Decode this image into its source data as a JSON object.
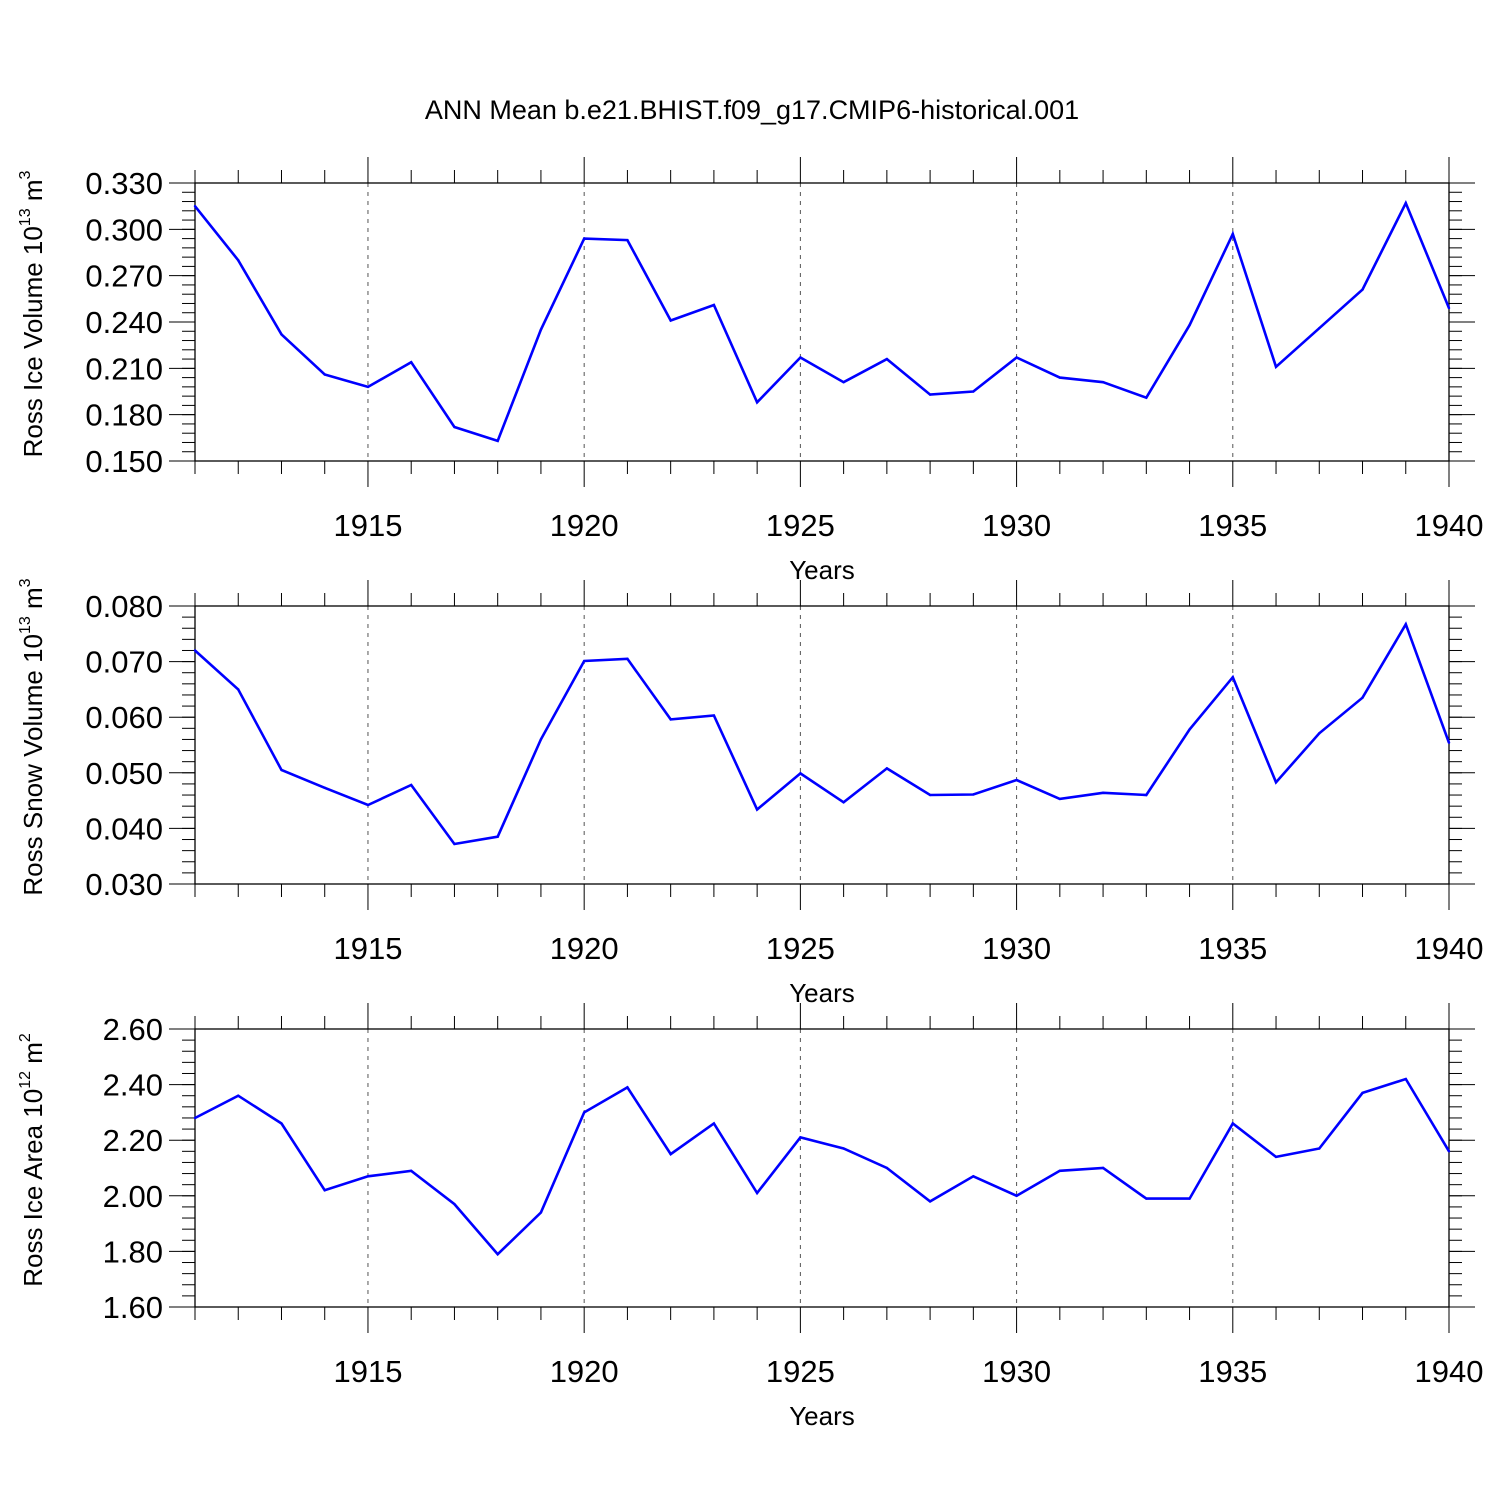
{
  "title": "ANN Mean b.e21.BHIST.f09_g17.CMIP6-historical.001",
  "colors": {
    "line": "#0000ff",
    "axis": "#000000",
    "grid": "#555555"
  },
  "chart_data": [
    {
      "type": "line",
      "ylabel_main": "Ross Ice Volume 10",
      "ylabel_exp": "13",
      "ylabel_unit": " m",
      "ylabel_unit_exp": "3",
      "xlabel": "Years",
      "xlim": [
        1911,
        1940
      ],
      "ylim": [
        0.15,
        0.33
      ],
      "ymajor": [
        0.15,
        0.18,
        0.21,
        0.24,
        0.27,
        0.3,
        0.33
      ],
      "ytick_labels": [
        "0.150",
        "0.180",
        "0.210",
        "0.240",
        "0.270",
        "0.300",
        "0.330"
      ],
      "yminor_step": 0.006,
      "xmajor": [
        1915,
        1920,
        1925,
        1930,
        1935,
        1940
      ],
      "xtick_labels": [
        "1915",
        "1920",
        "1925",
        "1930",
        "1935",
        "1940"
      ],
      "grid": "vertical dashed at major x ticks",
      "x": [
        1911,
        1912,
        1913,
        1914,
        1915,
        1916,
        1917,
        1918,
        1919,
        1920,
        1921,
        1922,
        1923,
        1924,
        1925,
        1926,
        1927,
        1928,
        1929,
        1930,
        1931,
        1932,
        1933,
        1934,
        1935,
        1936,
        1937,
        1938,
        1939,
        1940
      ],
      "values": [
        0.315,
        0.28,
        0.232,
        0.206,
        0.198,
        0.214,
        0.172,
        0.163,
        0.235,
        0.294,
        0.293,
        0.241,
        0.251,
        0.188,
        0.217,
        0.201,
        0.216,
        0.193,
        0.195,
        0.217,
        0.204,
        0.201,
        0.191,
        0.238,
        0.297,
        0.211,
        0.236,
        0.261,
        0.317,
        0.249
      ]
    },
    {
      "type": "line",
      "ylabel_main": "Ross Snow Volume 10",
      "ylabel_exp": "13",
      "ylabel_unit": " m",
      "ylabel_unit_exp": "3",
      "xlabel": "Years",
      "xlim": [
        1911,
        1940
      ],
      "ylim": [
        0.03,
        0.08
      ],
      "ymajor": [
        0.03,
        0.04,
        0.05,
        0.06,
        0.07,
        0.08
      ],
      "ytick_labels": [
        "0.030",
        "0.040",
        "0.050",
        "0.060",
        "0.070",
        "0.080"
      ],
      "yminor_step": 0.002,
      "xmajor": [
        1915,
        1920,
        1925,
        1930,
        1935,
        1940
      ],
      "xtick_labels": [
        "1915",
        "1920",
        "1925",
        "1930",
        "1935",
        "1940"
      ],
      "grid": "vertical dashed at major x ticks",
      "x": [
        1911,
        1912,
        1913,
        1914,
        1915,
        1916,
        1917,
        1918,
        1919,
        1920,
        1921,
        1922,
        1923,
        1924,
        1925,
        1926,
        1927,
        1928,
        1929,
        1930,
        1931,
        1932,
        1933,
        1934,
        1935,
        1936,
        1937,
        1938,
        1939,
        1940
      ],
      "values": [
        0.072,
        0.065,
        0.0505,
        0.0473,
        0.0442,
        0.0478,
        0.0372,
        0.0385,
        0.056,
        0.0701,
        0.0705,
        0.0596,
        0.0603,
        0.0434,
        0.0499,
        0.0447,
        0.0508,
        0.046,
        0.0461,
        0.0487,
        0.0453,
        0.0464,
        0.046,
        0.0578,
        0.0672,
        0.0483,
        0.0571,
        0.0635,
        0.0767,
        0.0554
      ]
    },
    {
      "type": "line",
      "ylabel_main": "Ross Ice Area 10",
      "ylabel_exp": "12",
      "ylabel_unit": " m",
      "ylabel_unit_exp": "2",
      "xlabel": "Years",
      "xlim": [
        1911,
        1940
      ],
      "ylim": [
        1.6,
        2.6
      ],
      "ymajor": [
        1.6,
        1.8,
        2.0,
        2.2,
        2.4,
        2.6
      ],
      "ytick_labels": [
        "1.60",
        "1.80",
        "2.00",
        "2.20",
        "2.40",
        "2.60"
      ],
      "yminor_step": 0.04,
      "xmajor": [
        1915,
        1920,
        1925,
        1930,
        1935,
        1940
      ],
      "xtick_labels": [
        "1915",
        "1920",
        "1925",
        "1930",
        "1935",
        "1940"
      ],
      "grid": "vertical dashed at major x ticks",
      "x": [
        1911,
        1912,
        1913,
        1914,
        1915,
        1916,
        1917,
        1918,
        1919,
        1920,
        1921,
        1922,
        1923,
        1924,
        1925,
        1926,
        1927,
        1928,
        1929,
        1930,
        1931,
        1932,
        1933,
        1934,
        1935,
        1936,
        1937,
        1938,
        1939,
        1940
      ],
      "values": [
        2.28,
        2.36,
        2.26,
        2.02,
        2.07,
        2.09,
        1.97,
        1.79,
        1.94,
        2.3,
        2.39,
        2.15,
        2.26,
        2.01,
        2.21,
        2.17,
        2.1,
        1.98,
        2.07,
        2.0,
        2.09,
        2.1,
        1.99,
        1.99,
        2.26,
        2.14,
        2.17,
        2.37,
        2.42,
        2.16
      ]
    }
  ]
}
